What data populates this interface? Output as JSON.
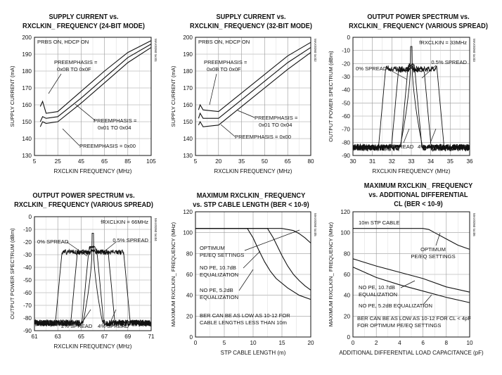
{
  "chart_data": [
    {
      "type": "line",
      "title": "SUPPLY CURRENT vs.",
      "subtitle": "RXCLKIN_ FREQUENCY (24-BIT MODE)",
      "xlabel": "RXCLKIN FREQUENCY (MHz)",
      "ylabel": "SUPPLY CURRENT (mA)",
      "xlim": [
        5,
        105
      ],
      "ylim": [
        130,
        200
      ],
      "xticks": [
        5,
        25,
        45,
        65,
        85,
        105
      ],
      "yticks": [
        130,
        140,
        150,
        160,
        170,
        180,
        190,
        200
      ],
      "grid": true,
      "watermark": "MAX9260 toc01",
      "annotations": [
        "PRBS ON, HDCP ON",
        "PREEMPHASIS =",
        "0x0B TO 0x0F",
        "PREEMPHASIS =",
        "0x01 TO 0x04",
        "PREEMPHASIS = 0x00"
      ],
      "series": [
        {
          "values": [
            [
              10,
              159
            ],
            [
              12,
              162
            ],
            [
              15,
              155
            ],
            [
              25,
              156
            ],
            [
              45,
              168
            ],
            [
              65,
              180
            ],
            [
              85,
              191
            ],
            [
              105,
              198
            ]
          ]
        },
        {
          "values": [
            [
              10,
              150
            ],
            [
              12,
              153
            ],
            [
              15,
              152
            ],
            [
              25,
              153
            ],
            [
              45,
              164
            ],
            [
              65,
              176
            ],
            [
              85,
              188
            ],
            [
              105,
              196
            ]
          ]
        },
        {
          "values": [
            [
              10,
              147
            ],
            [
              12,
              150
            ],
            [
              15,
              149
            ],
            [
              25,
              150
            ],
            [
              45,
              161
            ],
            [
              65,
              173
            ],
            [
              85,
              185
            ],
            [
              105,
              194
            ]
          ]
        }
      ]
    },
    {
      "type": "line",
      "title": "SUPPLY CURRENT vs.",
      "subtitle": "RXCLKIN_ FREQUENCY (32-BIT MODE)",
      "xlabel": "RXCLKIN FREQUENCY (MHz)",
      "ylabel": "SUPPLY CURRENT (mA)",
      "xlim": [
        5,
        80
      ],
      "ylim": [
        130,
        200
      ],
      "xticks": [
        5,
        20,
        35,
        50,
        65,
        80
      ],
      "yticks": [
        130,
        140,
        150,
        160,
        170,
        180,
        190,
        200
      ],
      "grid": true,
      "watermark": "MAX9260 toc02",
      "annotations": [
        "PRBS ON, HDCP ON",
        "PREEMPHASIS =",
        "0x0B TO 0x0F",
        "PREEMPHASIS =",
        "0x01 TO 0x04",
        "PREEMPHASIS = 0x00"
      ],
      "series": [
        {
          "values": [
            [
              7,
              157
            ],
            [
              8,
              160
            ],
            [
              10,
              157
            ],
            [
              20,
              156
            ],
            [
              35,
              167
            ],
            [
              50,
              178
            ],
            [
              65,
              189
            ],
            [
              80,
              197
            ]
          ]
        },
        {
          "values": [
            [
              7,
              152
            ],
            [
              8,
              155
            ],
            [
              10,
              152
            ],
            [
              20,
              152
            ],
            [
              35,
              163
            ],
            [
              50,
              174
            ],
            [
              65,
              185
            ],
            [
              80,
              194
            ]
          ]
        },
        {
          "values": [
            [
              7,
              148
            ],
            [
              8,
              150
            ],
            [
              10,
              147
            ],
            [
              20,
              148
            ],
            [
              35,
              159
            ],
            [
              50,
              170
            ],
            [
              65,
              181
            ],
            [
              80,
              191
            ]
          ]
        }
      ]
    },
    {
      "type": "line",
      "title": "OUTPUT POWER SPECTRUM vs.",
      "subtitle": "RXCLKIN_ FREQUENCY (VARIOUS SPREAD)",
      "xlabel": "RXCLKIN FREQUENCY (MHz)",
      "ylabel": "OUTPUT POWER SPECTRUM (dBm)",
      "xlim": [
        30,
        36
      ],
      "ylim": [
        -90,
        0
      ],
      "xticks": [
        30,
        31,
        32,
        33,
        34,
        35,
        36
      ],
      "yticks": [
        -90,
        -80,
        -70,
        -60,
        -50,
        -40,
        -30,
        -20,
        -10,
        0
      ],
      "grid": true,
      "watermark": "MAX9260 toc03",
      "annotations": [
        "fRXCLKIN = 33MHz",
        "0% SPREAD",
        "0.5% SPREAD",
        "2% SPREAD",
        "4% SPREAD"
      ],
      "series": [
        {
          "name": "0% SPREAD",
          "center": 33,
          "width": 0,
          "peak": -7
        },
        {
          "name": "0.5% SPREAD",
          "center": 33,
          "width": 0.165,
          "peak": -19
        },
        {
          "name": "2% SPREAD",
          "center": 33,
          "width": 0.66,
          "peak": -22
        },
        {
          "name": "4% SPREAD",
          "center": 33,
          "width": 1.32,
          "peak": -21
        }
      ]
    },
    {
      "type": "line",
      "title": "OUTPUT POWER SPECTRUM vs.",
      "subtitle": "RXCLKIN_ FREQUENCY (VARIOUS SPREAD)",
      "xlabel": "RXCLKIN FREQUENCY (MHz)",
      "ylabel": "OUTPUT POWER SPECTRUM (dBm)",
      "xlim": [
        61,
        71
      ],
      "ylim": [
        -90,
        0
      ],
      "xticks": [
        61,
        63,
        65,
        67,
        69,
        71
      ],
      "yticks": [
        -90,
        -80,
        -70,
        -60,
        -50,
        -40,
        -30,
        -20,
        -10,
        0
      ],
      "grid": true,
      "watermark": "MAX9260 toc04",
      "annotations": [
        "fRXCLKIN = 66MHz",
        "0% SPREAD",
        "0.5% SPREAD",
        "2% SPREAD",
        "4% SPREAD"
      ],
      "series": [
        {
          "name": "0% SPREAD",
          "center": 66,
          "width": 0,
          "peak": -13
        },
        {
          "name": "0.5% SPREAD",
          "center": 66,
          "width": 0.33,
          "peak": -22
        },
        {
          "name": "2% SPREAD",
          "center": 66,
          "width": 1.32,
          "peak": -25
        },
        {
          "name": "4% SPREAD",
          "center": 66,
          "width": 2.64,
          "peak": -25
        }
      ]
    },
    {
      "type": "line",
      "title": "MAXIMUM RXCLKIN_ FREQUENCY",
      "subtitle": "vs. STP CABLE LENGTH (BER < 10-9)",
      "xlabel": "STP CABLE LENGTH (m)",
      "ylabel": "MAXIMUM RXCLKIN_ FREQUENCY (MHz)",
      "xlim": [
        0,
        20
      ],
      "ylim": [
        0,
        120
      ],
      "xticks": [
        0,
        5,
        10,
        15,
        20
      ],
      "yticks": [
        0,
        20,
        40,
        60,
        80,
        100,
        120
      ],
      "grid": true,
      "watermark": "MAX9260 toc05",
      "annotations": [
        "OPTIMUM",
        "PE/EQ SETTINGS",
        "NO PE, 10.7dB",
        "EQUALIZATION",
        "NO PE, 5.2dB",
        "EQUALIZATION",
        "BER CAN BE AS LOW AS 10-12 FOR",
        "CABLE LENGTHS LESS THAN 10m"
      ],
      "series": [
        {
          "name": "OPTIMUM PE/EQ SETTINGS",
          "values": [
            [
              0,
              104
            ],
            [
              15,
              104
            ],
            [
              17,
              102
            ],
            [
              18,
              99
            ],
            [
              19,
              95
            ],
            [
              20,
              90
            ]
          ]
        },
        {
          "name": "NO PE, 10.7dB EQUALIZATION",
          "values": [
            [
              0,
              104
            ],
            [
              12.5,
              104
            ],
            [
              13.5,
              95
            ],
            [
              15,
              78
            ],
            [
              16,
              68
            ],
            [
              17,
              60
            ],
            [
              18,
              54
            ],
            [
              19,
              49
            ],
            [
              20,
              45
            ]
          ]
        },
        {
          "name": "NO PE, 5.2dB EQUALIZATION",
          "values": [
            [
              0,
              104
            ],
            [
              9,
              104
            ],
            [
              10,
              95
            ],
            [
              11,
              83
            ],
            [
              12,
              72
            ],
            [
              13,
              63
            ],
            [
              14,
              56
            ],
            [
              16,
              47
            ],
            [
              18,
              40
            ],
            [
              20,
              36
            ]
          ]
        }
      ]
    },
    {
      "type": "line",
      "title": "MAXIMUM RXCLKIN_ FREQUENCY",
      "subtitle": "vs. ADDITIONAL DIFFERENTIAL",
      "subtitle2": "CL (BER < 10-9)",
      "xlabel": "ADDITIONAL DIFFERENTIAL LOAD CAPACITANCE (pF)",
      "ylabel": "MAXIMUM RXCLKIN_ FREQUENCY (MHz)",
      "xlim": [
        0,
        10
      ],
      "ylim": [
        0,
        120
      ],
      "xticks": [
        0,
        2,
        4,
        6,
        8,
        10
      ],
      "yticks": [
        0,
        20,
        40,
        60,
        80,
        100,
        120
      ],
      "grid": true,
      "watermark": "MAX9260 toc06",
      "annotations": [
        "10m STP CABLE",
        "OPTIMUM",
        "PE/EQ SETTINGS",
        "NO PE, 10.7dB",
        "EQUALIZATION",
        "NO PE, 5.2dB EQUALIZATION",
        "BER CAN BE AS LOW AS 10-12 FOR CL < 4pF",
        "FOR OPTIMUM PE/EQ SETTINGS"
      ],
      "series": [
        {
          "name": "OPTIMUM PE/EQ SETTINGS",
          "values": [
            [
              0,
              104
            ],
            [
              6,
              104
            ],
            [
              6.5,
              103
            ],
            [
              7,
              100
            ],
            [
              8,
              94
            ],
            [
              9,
              88
            ],
            [
              10,
              84
            ]
          ]
        },
        {
          "name": "NO PE, 10.7dB EQUALIZATION",
          "values": [
            [
              0,
              75
            ],
            [
              2,
              68
            ],
            [
              4,
              62
            ],
            [
              6,
              56
            ],
            [
              8,
              48
            ],
            [
              10,
              43
            ]
          ]
        },
        {
          "name": "NO PE, 5.2dB EQUALIZATION",
          "values": [
            [
              0,
              67
            ],
            [
              1,
              62
            ],
            [
              2,
              57
            ],
            [
              4,
              50
            ],
            [
              6,
              44
            ],
            [
              8,
              38
            ],
            [
              10,
              33
            ]
          ]
        }
      ]
    }
  ]
}
